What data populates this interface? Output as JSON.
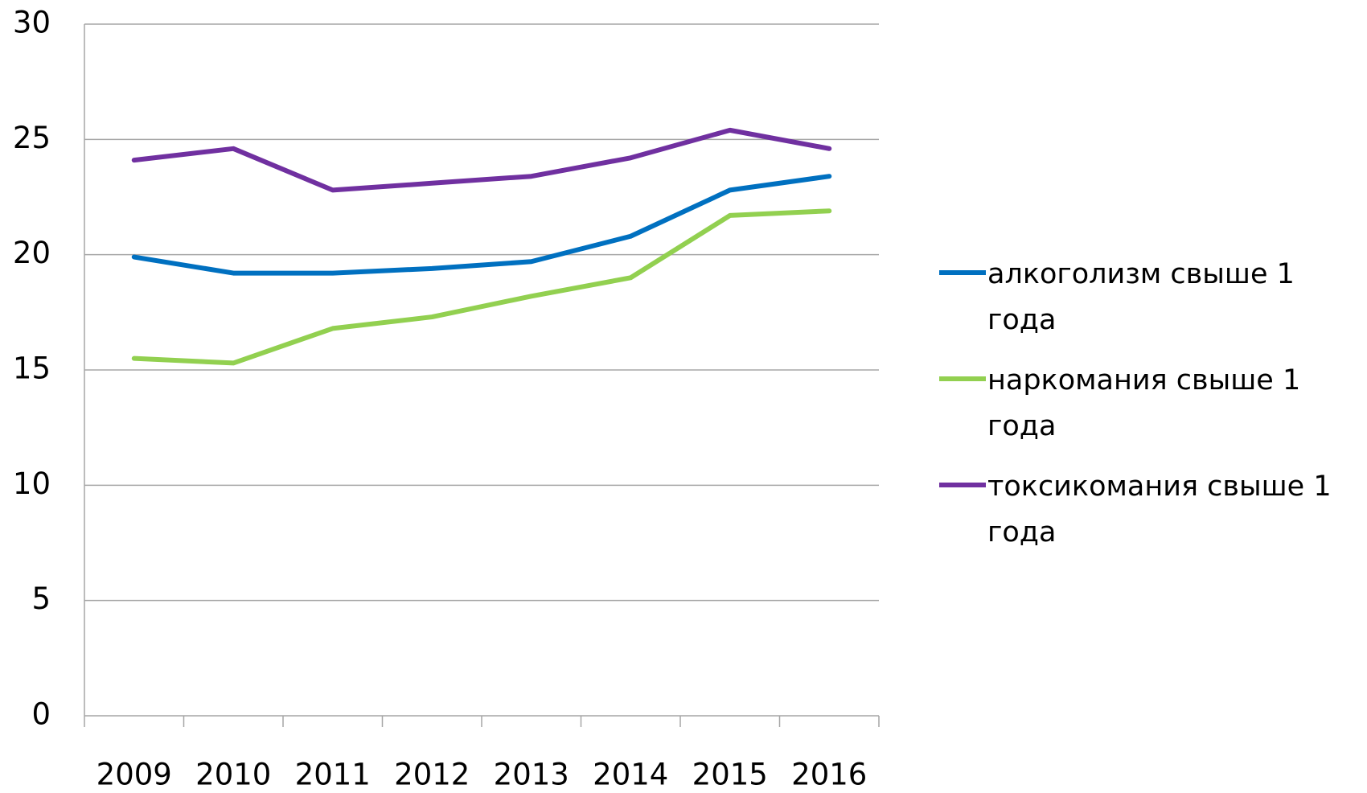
{
  "chart_data": {
    "type": "line",
    "categories": [
      "2009",
      "2010",
      "2011",
      "2012",
      "2013",
      "2014",
      "2015",
      "2016"
    ],
    "series": [
      {
        "name": "алкоголизм свыше 1 года",
        "color": "#0070c0",
        "values": [
          19.9,
          19.2,
          19.2,
          19.4,
          19.7,
          20.8,
          22.8,
          23.4
        ]
      },
      {
        "name": "наркомания свыше 1 года",
        "color": "#92d050",
        "values": [
          15.5,
          15.3,
          16.8,
          17.3,
          18.2,
          19.0,
          21.7,
          21.9
        ]
      },
      {
        "name": "токсикомания свыше 1 года",
        "color": "#7030a0",
        "values": [
          24.1,
          24.6,
          22.8,
          23.1,
          23.4,
          24.2,
          25.4,
          24.6
        ]
      }
    ],
    "ylim": [
      0,
      30
    ],
    "yticks": [
      0,
      5,
      10,
      15,
      20,
      25,
      30
    ],
    "grid": true,
    "legend": "right"
  }
}
